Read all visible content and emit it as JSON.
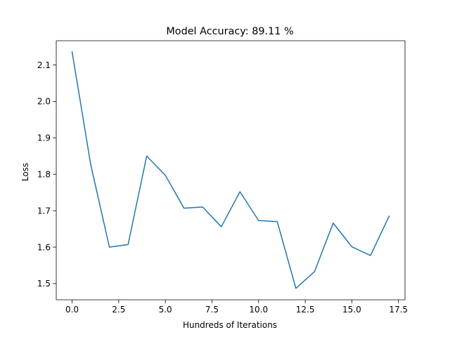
{
  "chart_data": {
    "type": "line",
    "title": "Model Accuracy: 89.11 %",
    "xlabel": "Hundreds of Iterations",
    "ylabel": "Loss",
    "xlim": [
      -0.85,
      17.85
    ],
    "ylim": [
      1.4555,
      2.1665
    ],
    "grid": false,
    "x_ticks": [
      0.0,
      2.5,
      5.0,
      7.5,
      10.0,
      12.5,
      15.0,
      17.5
    ],
    "x_tick_labels": [
      "0.0",
      "2.5",
      "5.0",
      "7.5",
      "10.0",
      "12.5",
      "15.0",
      "17.5"
    ],
    "y_ticks": [
      1.5,
      1.6,
      1.7,
      1.8,
      1.9,
      2.0,
      2.1
    ],
    "y_tick_labels": [
      "1.5",
      "1.6",
      "1.7",
      "1.8",
      "1.9",
      "2.0",
      "2.1"
    ],
    "series": [
      {
        "color": "#1f77b4",
        "x": [
          0,
          1,
          2,
          3,
          4,
          5,
          6,
          7,
          8,
          9,
          10,
          11,
          12,
          13,
          14,
          15,
          16,
          17
        ],
        "y": [
          2.136,
          1.826,
          1.6,
          1.607,
          1.85,
          1.797,
          1.707,
          1.71,
          1.656,
          1.752,
          1.673,
          1.67,
          1.487,
          1.533,
          1.666,
          1.601,
          1.577,
          1.685
        ]
      }
    ]
  }
}
